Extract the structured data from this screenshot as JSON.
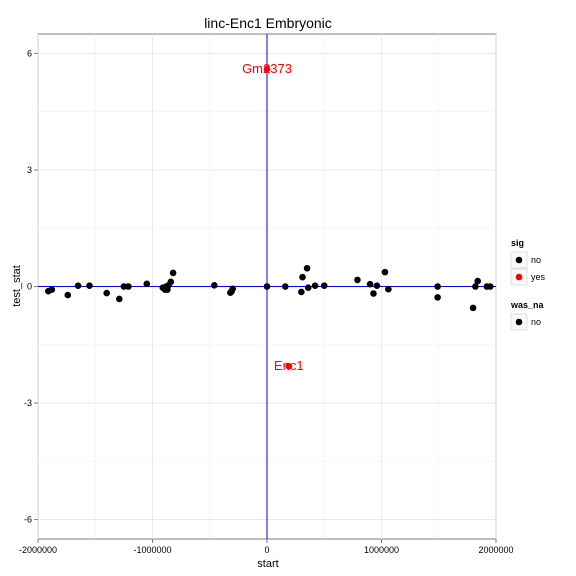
{
  "chart_data": {
    "type": "scatter",
    "title": "linc-Enc1 Embryonic",
    "xlabel": "start",
    "ylabel": "test_stat",
    "xlim": [
      -2000000,
      2000000
    ],
    "ylim": [
      -6.5,
      6.5
    ],
    "x_ticks": [
      -2000000,
      -1000000,
      0,
      1000000,
      2000000
    ],
    "x_tick_labels": [
      "-2000000",
      "-1000000",
      "0",
      "1000000",
      "2000000"
    ],
    "y_ticks": [
      -6,
      -3,
      0,
      3,
      6
    ],
    "y_tick_labels": [
      "-6",
      "-3",
      "0",
      "3",
      "6"
    ],
    "grid": true,
    "reference_lines": {
      "horizontal_y": 0,
      "vertical_x": 0,
      "color": "#0000ff"
    },
    "colors": {
      "no": "#000000",
      "yes": "#ff0000"
    },
    "series": [
      {
        "name": "no",
        "x": [
          -1910000,
          -1880000,
          -1740000,
          -1650000,
          -1550000,
          -1400000,
          -1290000,
          -1250000,
          -1210000,
          -1050000,
          -910000,
          -890000,
          -880000,
          -870000,
          -860000,
          -840000,
          -820000,
          -460000,
          -320000,
          -310000,
          -300000,
          0,
          160000,
          300000,
          310000,
          350000,
          360000,
          420000,
          500000,
          790000,
          900000,
          930000,
          960000,
          1030000,
          1060000,
          1490000,
          1490000,
          1800000,
          1820000,
          1840000,
          1920000,
          1950000
        ],
        "y": [
          -0.12,
          -0.08,
          -0.22,
          0.02,
          0.02,
          -0.17,
          -0.32,
          0.0,
          0.0,
          0.07,
          -0.03,
          -0.08,
          0.0,
          -0.08,
          0.03,
          0.12,
          0.35,
          0.03,
          -0.16,
          -0.13,
          -0.06,
          0.0,
          0.0,
          -0.14,
          0.24,
          0.47,
          -0.03,
          0.02,
          0.02,
          0.17,
          0.06,
          -0.18,
          0.02,
          0.37,
          -0.07,
          0.0,
          -0.28,
          -0.55,
          0.0,
          0.14,
          0.0,
          0.0
        ]
      },
      {
        "name": "yes",
        "x": [
          0,
          190000
        ],
        "y": [
          5.6,
          -2.05
        ],
        "labels": [
          "Gm2373",
          "Enc1"
        ]
      }
    ],
    "legends": [
      {
        "title": "sig",
        "entries": [
          "no",
          "yes"
        ]
      },
      {
        "title": "was_na",
        "entries": [
          "no"
        ]
      }
    ]
  }
}
